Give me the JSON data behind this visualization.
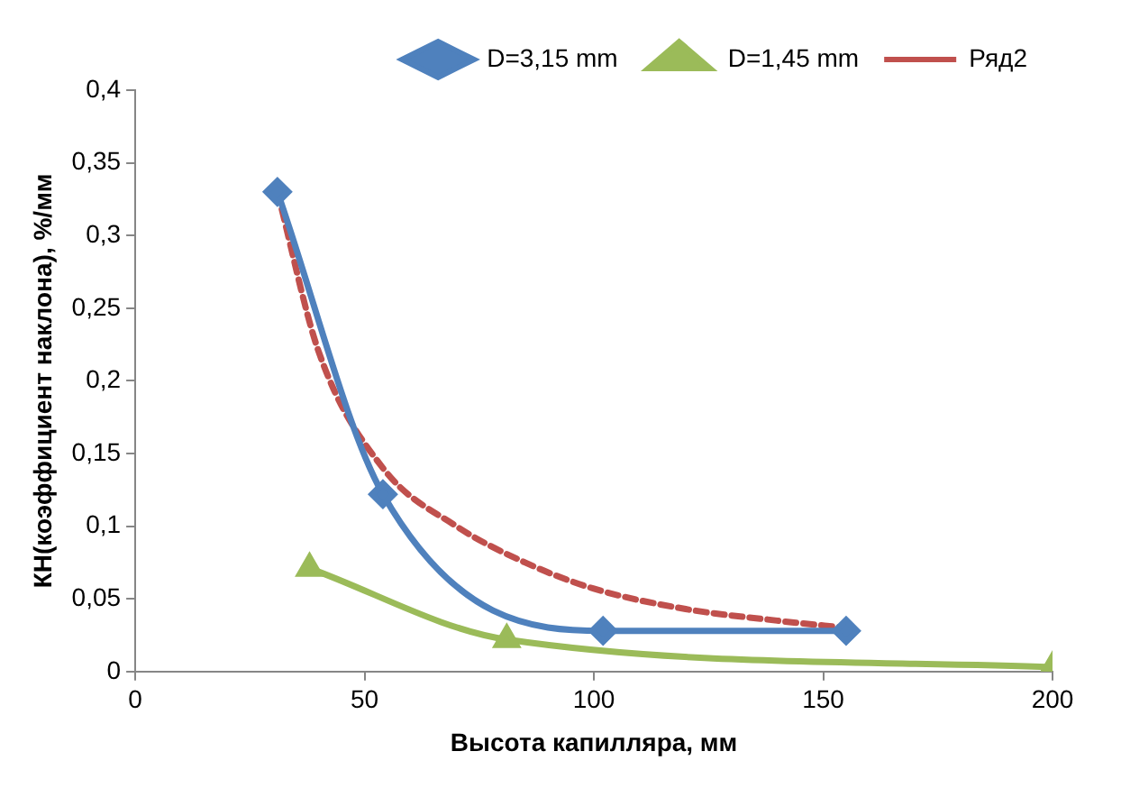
{
  "chart_data": {
    "type": "line",
    "xlabel": "Высота капилляра, мм",
    "ylabel": "КН(коэффициент наклона), %/мм",
    "xlim": [
      0,
      200
    ],
    "xticks": [
      0,
      50,
      100,
      150,
      200
    ],
    "ylim": [
      0,
      0.4
    ],
    "yticks": [
      {
        "value": 0,
        "label": "0"
      },
      {
        "value": 0.05,
        "label": "0,05"
      },
      {
        "value": 0.1,
        "label": "0,1"
      },
      {
        "value": 0.15,
        "label": "0,15"
      },
      {
        "value": 0.2,
        "label": "0,2"
      },
      {
        "value": 0.25,
        "label": "0,25"
      },
      {
        "value": 0.3,
        "label": "0,3"
      },
      {
        "value": 0.35,
        "label": "0,35"
      },
      {
        "value": 0.4,
        "label": "0,4"
      }
    ],
    "grid": false,
    "legend": "top",
    "series": [
      {
        "name": "D=3,15 mm",
        "color": "#4f81bd",
        "marker": "diamond",
        "line_style": "solid",
        "x": [
          31,
          54,
          102,
          155
        ],
        "values": [
          0.33,
          0.122,
          0.028,
          0.028
        ]
      },
      {
        "name": "D=1,45 mm",
        "color": "#9bbb59",
        "marker": "triangle",
        "line_style": "solid",
        "x": [
          38,
          81,
          200
        ],
        "values": [
          0.071,
          0.022,
          0.003
        ]
      },
      {
        "name": "Ряд2",
        "color": "#c0504d",
        "marker": "none",
        "line_style": "dashed",
        "x": [
          31,
          40,
          54,
          70,
          85,
          100,
          120,
          140,
          155
        ],
        "values": [
          0.33,
          0.22,
          0.14,
          0.1,
          0.075,
          0.057,
          0.043,
          0.035,
          0.03
        ]
      }
    ]
  }
}
